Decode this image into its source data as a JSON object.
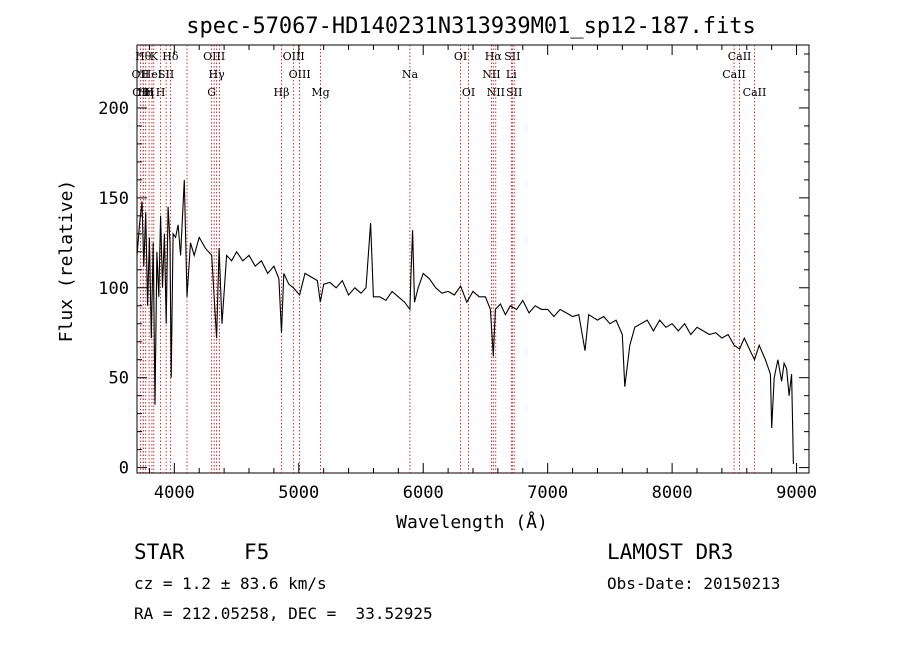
{
  "chart_data": {
    "type": "line",
    "title": "spec-57067-HD140231N313939M01_sp12-187.fits",
    "xlabel": "Wavelength (Å)",
    "ylabel": "Flux (relative)",
    "xlim": [
      3700,
      9100
    ],
    "ylim": [
      -3,
      235
    ],
    "xticks": [
      4000,
      5000,
      6000,
      7000,
      8000,
      9000
    ],
    "yticks": [
      0,
      50,
      100,
      150,
      200
    ],
    "grid": false,
    "line_color": "#000000",
    "marker_color": "#cc0000",
    "series": [
      {
        "values": [
          [
            3700,
            118
          ],
          [
            3720,
            135
          ],
          [
            3740,
            148
          ],
          [
            3755,
            112
          ],
          [
            3770,
            142
          ],
          [
            3785,
            90
          ],
          [
            3800,
            128
          ],
          [
            3815,
            72
          ],
          [
            3830,
            125
          ],
          [
            3845,
            35
          ],
          [
            3860,
            120
          ],
          [
            3875,
            95
          ],
          [
            3890,
            140
          ],
          [
            3905,
            100
          ],
          [
            3920,
            130
          ],
          [
            3935,
            80
          ],
          [
            3950,
            145
          ],
          [
            3965,
            125
          ],
          [
            3975,
            50
          ],
          [
            3990,
            130
          ],
          [
            4010,
            128
          ],
          [
            4030,
            135
          ],
          [
            4050,
            118
          ],
          [
            4080,
            160
          ],
          [
            4102,
            95
          ],
          [
            4130,
            125
          ],
          [
            4160,
            118
          ],
          [
            4200,
            128
          ],
          [
            4250,
            122
          ],
          [
            4300,
            118
          ],
          [
            4340,
            72
          ],
          [
            4360,
            122
          ],
          [
            4383,
            80
          ],
          [
            4420,
            118
          ],
          [
            4460,
            115
          ],
          [
            4500,
            120
          ],
          [
            4550,
            115
          ],
          [
            4600,
            118
          ],
          [
            4650,
            112
          ],
          [
            4700,
            115
          ],
          [
            4750,
            108
          ],
          [
            4800,
            112
          ],
          [
            4840,
            105
          ],
          [
            4861,
            75
          ],
          [
            4880,
            108
          ],
          [
            4920,
            102
          ],
          [
            4957,
            100
          ],
          [
            5007,
            96
          ],
          [
            5050,
            108
          ],
          [
            5100,
            106
          ],
          [
            5150,
            104
          ],
          [
            5173,
            92
          ],
          [
            5200,
            102
          ],
          [
            5250,
            103
          ],
          [
            5300,
            100
          ],
          [
            5350,
            104
          ],
          [
            5400,
            96
          ],
          [
            5450,
            100
          ],
          [
            5500,
            97
          ],
          [
            5540,
            100
          ],
          [
            5577,
            136
          ],
          [
            5600,
            95
          ],
          [
            5650,
            95
          ],
          [
            5700,
            93
          ],
          [
            5750,
            98
          ],
          [
            5800,
            95
          ],
          [
            5850,
            92
          ],
          [
            5893,
            88
          ],
          [
            5900,
            105
          ],
          [
            5915,
            132
          ],
          [
            5930,
            92
          ],
          [
            5960,
            100
          ],
          [
            6000,
            108
          ],
          [
            6050,
            105
          ],
          [
            6100,
            100
          ],
          [
            6150,
            97
          ],
          [
            6200,
            98
          ],
          [
            6250,
            96
          ],
          [
            6300,
            101
          ],
          [
            6350,
            92
          ],
          [
            6400,
            98
          ],
          [
            6450,
            95
          ],
          [
            6500,
            95
          ],
          [
            6540,
            88
          ],
          [
            6563,
            62
          ],
          [
            6580,
            88
          ],
          [
            6620,
            91
          ],
          [
            6660,
            85
          ],
          [
            6700,
            90
          ],
          [
            6750,
            88
          ],
          [
            6800,
            93
          ],
          [
            6850,
            86
          ],
          [
            6900,
            90
          ],
          [
            6950,
            88
          ],
          [
            7000,
            88
          ],
          [
            7050,
            84
          ],
          [
            7100,
            88
          ],
          [
            7150,
            86
          ],
          [
            7200,
            84
          ],
          [
            7250,
            85
          ],
          [
            7300,
            65
          ],
          [
            7330,
            85
          ],
          [
            7400,
            82
          ],
          [
            7450,
            84
          ],
          [
            7500,
            80
          ],
          [
            7550,
            82
          ],
          [
            7600,
            74
          ],
          [
            7620,
            45
          ],
          [
            7660,
            68
          ],
          [
            7700,
            78
          ],
          [
            7750,
            80
          ],
          [
            7800,
            82
          ],
          [
            7850,
            76
          ],
          [
            7900,
            82
          ],
          [
            7950,
            78
          ],
          [
            8000,
            80
          ],
          [
            8050,
            76
          ],
          [
            8100,
            80
          ],
          [
            8150,
            74
          ],
          [
            8200,
            78
          ],
          [
            8250,
            76
          ],
          [
            8300,
            74
          ],
          [
            8350,
            75
          ],
          [
            8400,
            72
          ],
          [
            8450,
            74
          ],
          [
            8498,
            68
          ],
          [
            8542,
            66
          ],
          [
            8580,
            72
          ],
          [
            8620,
            66
          ],
          [
            8662,
            60
          ],
          [
            8700,
            68
          ],
          [
            8750,
            60
          ],
          [
            8790,
            52
          ],
          [
            8800,
            22
          ],
          [
            8820,
            50
          ],
          [
            8850,
            60
          ],
          [
            8880,
            48
          ],
          [
            8900,
            58
          ],
          [
            8920,
            55
          ],
          [
            8940,
            40
          ],
          [
            8960,
            52
          ],
          [
            8975,
            2
          ]
        ]
      }
    ],
    "line_markers": [
      {
        "x": 3727,
        "label": "OII",
        "row": 1
      },
      {
        "x": 3750,
        "label": "Hθ",
        "row": 0
      },
      {
        "x": 3750,
        "label": "OIII",
        "row": 2
      },
      {
        "x": 3770,
        "label": "Hη",
        "row": 2
      },
      {
        "x": 3797,
        "label": "H",
        "row": 2
      },
      {
        "x": 3820,
        "label": "HeI",
        "row": 1
      },
      {
        "x": 3835,
        "label": "K",
        "row": 0
      },
      {
        "x": 3889,
        "label": "H",
        "row": 2
      },
      {
        "x": 3934,
        "label": "SII",
        "row": 1
      },
      {
        "x": 3968,
        "label": "Hδ",
        "row": 0
      },
      {
        "x": 4102,
        "label": "",
        "row": -1
      },
      {
        "x": 4300,
        "label": "G",
        "row": 2
      },
      {
        "x": 4320,
        "label": "OIII",
        "row": 0
      },
      {
        "x": 4340,
        "label": "Hγ",
        "row": 1
      },
      {
        "x": 4363,
        "label": "",
        "row": -1
      },
      {
        "x": 4861,
        "label": "Hβ",
        "row": 2
      },
      {
        "x": 4959,
        "label": "OIII",
        "row": 0
      },
      {
        "x": 5007,
        "label": "OIII",
        "row": 1
      },
      {
        "x": 5175,
        "label": "Mg",
        "row": 2
      },
      {
        "x": 5893,
        "label": "Na",
        "row": 1
      },
      {
        "x": 6300,
        "label": "OI",
        "row": 0
      },
      {
        "x": 6364,
        "label": "OI",
        "row": 2
      },
      {
        "x": 6548,
        "label": "NII",
        "row": 1
      },
      {
        "x": 6563,
        "label": "Hα",
        "row": 0
      },
      {
        "x": 6583,
        "label": "NII",
        "row": 2
      },
      {
        "x": 6708,
        "label": "Li",
        "row": 1
      },
      {
        "x": 6716,
        "label": "SII",
        "row": 0
      },
      {
        "x": 6731,
        "label": "SII",
        "row": 2
      },
      {
        "x": 8498,
        "label": "CaII",
        "row": 1
      },
      {
        "x": 8542,
        "label": "CaII",
        "row": 0
      },
      {
        "x": 8662,
        "label": "CaII",
        "row": 2
      }
    ]
  },
  "info": {
    "object_class": "STAR",
    "subclass": "F5",
    "survey": "LAMOST DR3",
    "redshift": "cz = 1.2 ± 83.6 km/s",
    "obs_date": "Obs-Date: 20150213",
    "coordinates": "RA = 212.05258, DEC =  33.52925"
  }
}
